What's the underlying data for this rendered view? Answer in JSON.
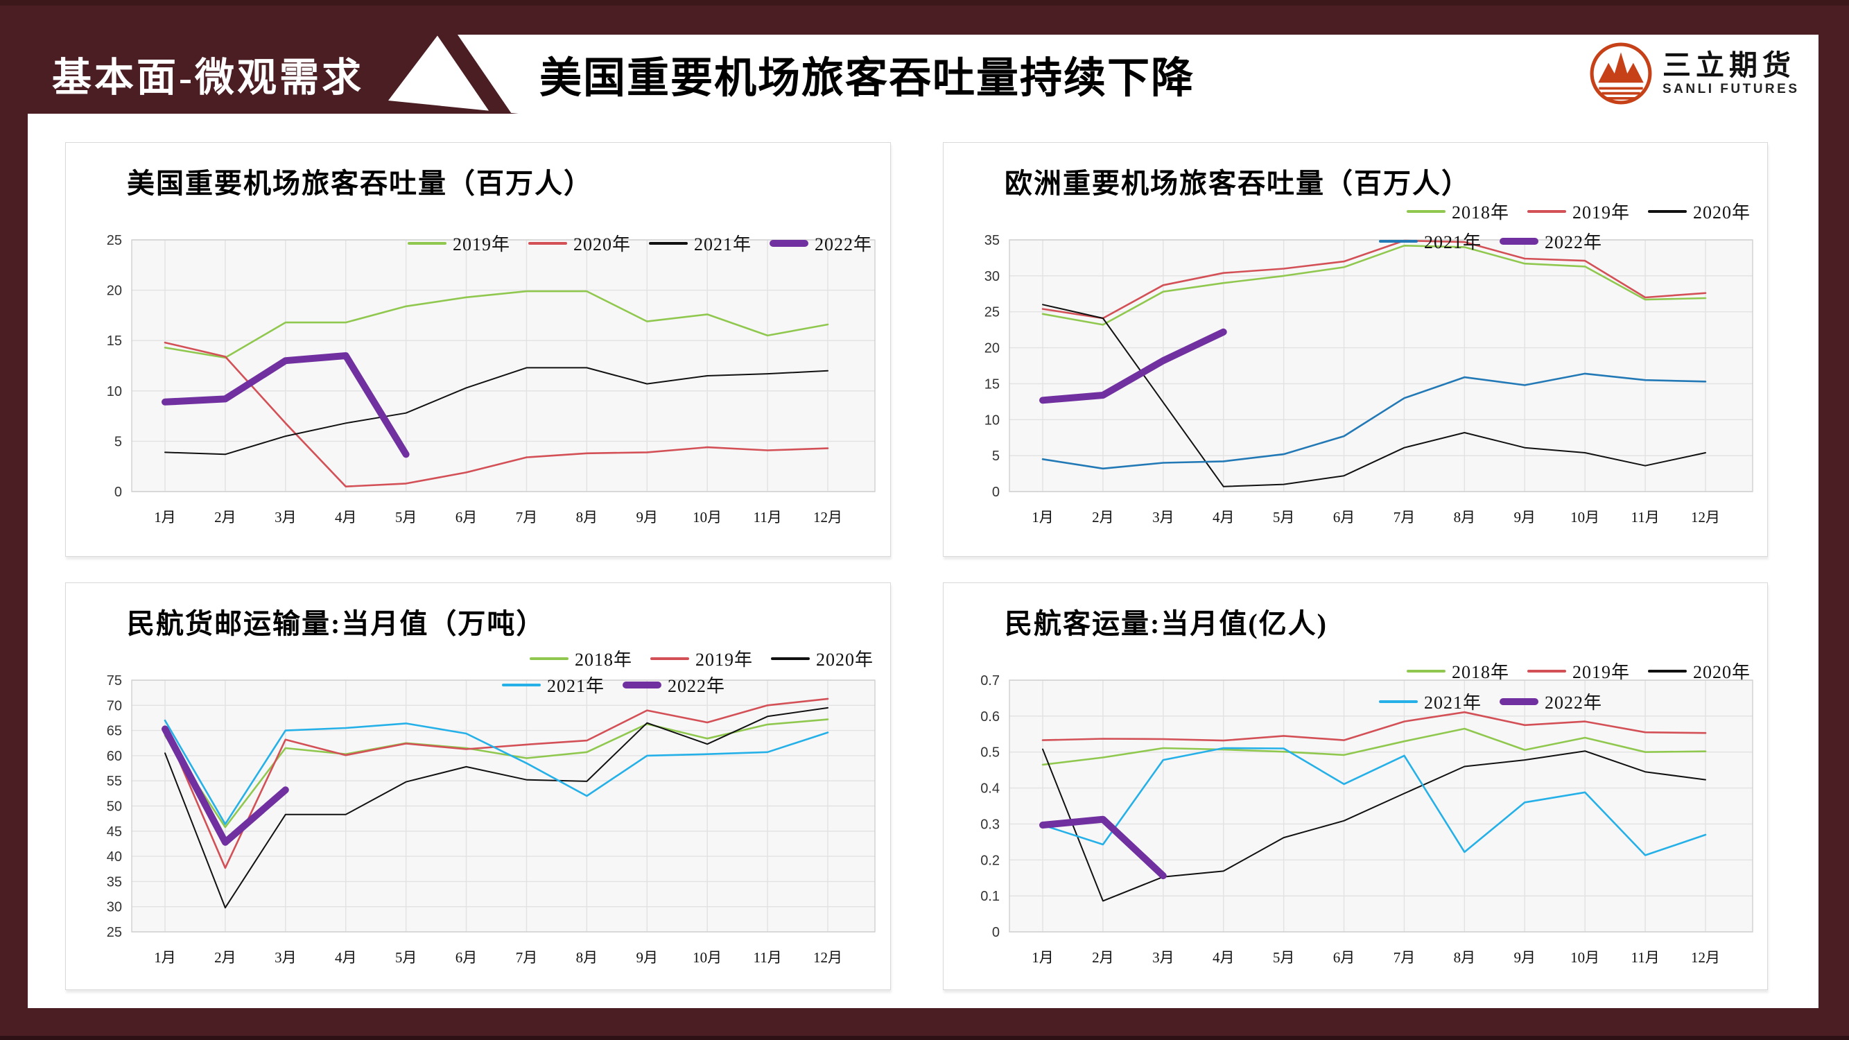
{
  "header": {
    "section_label": "基本面-微观需求",
    "title": "美国重要机场旅客吞吐量持续下降",
    "logo": {
      "name_cn": "三立期货",
      "name_en": "SANLI FUTURES",
      "color": "#c64117"
    }
  },
  "months": [
    "1月",
    "2月",
    "3月",
    "4月",
    "5月",
    "6月",
    "7月",
    "8月",
    "9月",
    "10月",
    "11月",
    "12月"
  ],
  "colors": {
    "maroon": "#4a1e22",
    "green": "#90c84f",
    "red": "#d25056",
    "black": "#111111",
    "blue": "#2279b5",
    "cyan": "#25b0e8",
    "purple": "#7030a0",
    "plot_bg": "#f7f7f7",
    "gridline": "#e2e2e2",
    "plot_border": "#cfcfcf"
  },
  "chart_data": [
    {
      "type": "line",
      "title": "美国重要机场旅客吞吐量（百万人）",
      "xlabel": "",
      "ylabel": "",
      "ylim": [
        0,
        25
      ],
      "ystep": 5,
      "ydecimals": 0,
      "grid": true,
      "legend_position": "top-right-single-row",
      "series": [
        {
          "name": "2019年",
          "color": "#90c84f",
          "thick": false,
          "values": [
            14.3,
            13.3,
            16.8,
            16.8,
            18.4,
            19.3,
            19.9,
            19.9,
            16.9,
            17.6,
            15.5,
            16.6
          ]
        },
        {
          "name": "2020年",
          "color": "#d25056",
          "thick": false,
          "values": [
            14.8,
            13.4,
            6.8,
            0.5,
            0.8,
            1.9,
            3.4,
            3.8,
            3.9,
            4.4,
            4.1,
            4.3
          ]
        },
        {
          "name": "2021年",
          "color": "#111111",
          "thick": false,
          "values": [
            3.9,
            3.7,
            5.5,
            6.8,
            7.8,
            10.3,
            12.3,
            12.3,
            10.7,
            11.5,
            11.7,
            12.0
          ]
        },
        {
          "name": "2022年",
          "color": "#7030a0",
          "thick": true,
          "values": [
            8.9,
            9.2,
            13.0,
            13.5,
            3.7,
            null,
            null,
            null,
            null,
            null,
            null,
            null
          ]
        }
      ]
    },
    {
      "type": "line",
      "title": "欧洲重要机场旅客吞吐量（百万人）",
      "xlabel": "",
      "ylabel": "",
      "ylim": [
        0,
        35
      ],
      "ystep": 5,
      "ydecimals": 0,
      "grid": true,
      "legend_position": "top-right-two-rows",
      "series": [
        {
          "name": "2018年",
          "color": "#90c84f",
          "thick": false,
          "values": [
            24.7,
            23.2,
            27.8,
            29.0,
            30.0,
            31.2,
            34.2,
            34.0,
            31.7,
            31.3,
            26.7,
            26.9
          ]
        },
        {
          "name": "2019年",
          "color": "#d25056",
          "thick": false,
          "values": [
            25.4,
            24.1,
            28.7,
            30.4,
            31.0,
            32.0,
            34.9,
            34.7,
            32.4,
            32.1,
            27.0,
            27.6
          ]
        },
        {
          "name": "2020年",
          "color": "#111111",
          "thick": false,
          "values": [
            26.0,
            24.1,
            12.4,
            0.7,
            1.0,
            2.2,
            6.1,
            8.2,
            6.1,
            5.4,
            3.6,
            5.4
          ]
        },
        {
          "name": "2021年",
          "color": "#2279b5",
          "thick": false,
          "values": [
            4.5,
            3.2,
            4.0,
            4.2,
            5.2,
            7.7,
            13.0,
            15.9,
            14.8,
            16.4,
            15.5,
            15.3
          ]
        },
        {
          "name": "2022年",
          "color": "#7030a0",
          "thick": true,
          "values": [
            12.7,
            13.4,
            18.2,
            22.2,
            null,
            null,
            null,
            null,
            null,
            null,
            null,
            null
          ]
        }
      ]
    },
    {
      "type": "line",
      "title": "民航货邮运输量:当月值（万吨）",
      "xlabel": "",
      "ylabel": "",
      "ylim": [
        25,
        75
      ],
      "ystep": 5,
      "ydecimals": 0,
      "grid": true,
      "legend_position": "top-right-two-rows",
      "series": [
        {
          "name": "2018年",
          "color": "#90c84f",
          "thick": false,
          "values": [
            64.0,
            45.8,
            61.5,
            60.3,
            62.5,
            61.5,
            59.5,
            60.7,
            66.3,
            63.4,
            66.2,
            67.2
          ]
        },
        {
          "name": "2019年",
          "color": "#d25056",
          "thick": false,
          "values": [
            65.5,
            37.7,
            63.2,
            60.1,
            62.4,
            61.3,
            62.2,
            63.0,
            69.0,
            66.6,
            70.0,
            71.3
          ]
        },
        {
          "name": "2020年",
          "color": "#111111",
          "thick": false,
          "values": [
            60.5,
            29.8,
            48.3,
            48.3,
            54.8,
            57.8,
            55.2,
            54.9,
            66.5,
            62.3,
            67.8,
            69.5
          ]
        },
        {
          "name": "2021年",
          "color": "#25b0e8",
          "thick": false,
          "values": [
            67.0,
            46.4,
            65.0,
            65.5,
            66.4,
            64.4,
            58.5,
            52.0,
            60.0,
            60.3,
            60.7,
            64.6
          ]
        },
        {
          "name": "2022年",
          "color": "#7030a0",
          "thick": true,
          "values": [
            65.3,
            42.8,
            53.2,
            null,
            null,
            null,
            null,
            null,
            null,
            null,
            null,
            null
          ]
        }
      ]
    },
    {
      "type": "line",
      "title": "民航客运量:当月值(亿人)",
      "xlabel": "",
      "ylabel": "",
      "ylim": [
        0,
        0.7
      ],
      "ystep": 0.1,
      "ydecimals": 1,
      "grid": true,
      "legend_position": "top-right-two-rows",
      "series": [
        {
          "name": "2018年",
          "color": "#90c84f",
          "thick": false,
          "values": [
            0.465,
            0.485,
            0.511,
            0.507,
            0.501,
            0.492,
            0.53,
            0.565,
            0.506,
            0.54,
            0.5,
            0.502
          ]
        },
        {
          "name": "2019年",
          "color": "#d25056",
          "thick": false,
          "values": [
            0.533,
            0.537,
            0.536,
            0.532,
            0.545,
            0.533,
            0.585,
            0.611,
            0.575,
            0.585,
            0.555,
            0.553
          ]
        },
        {
          "name": "2020年",
          "color": "#111111",
          "thick": false,
          "values": [
            0.508,
            0.086,
            0.153,
            0.169,
            0.262,
            0.309,
            0.385,
            0.46,
            0.478,
            0.503,
            0.445,
            0.423
          ]
        },
        {
          "name": "2021年",
          "color": "#25b0e8",
          "thick": false,
          "values": [
            0.297,
            0.243,
            0.478,
            0.511,
            0.51,
            0.411,
            0.49,
            0.222,
            0.36,
            0.388,
            0.213,
            0.27
          ]
        },
        {
          "name": "2022年",
          "color": "#7030a0",
          "thick": true,
          "values": [
            0.297,
            0.313,
            0.156,
            null,
            null,
            null,
            null,
            null,
            null,
            null,
            null,
            null
          ]
        }
      ]
    }
  ]
}
